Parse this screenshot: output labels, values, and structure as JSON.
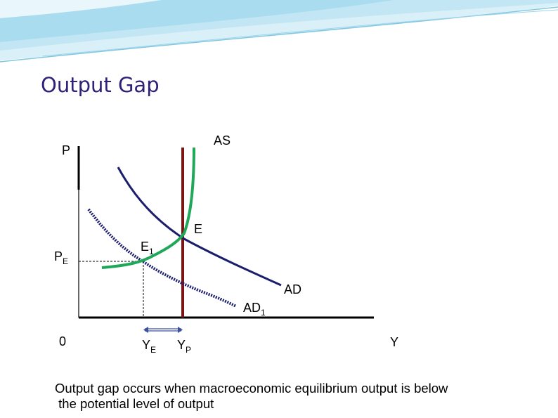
{
  "slide": {
    "title": "Output Gap",
    "caption_line1": "Output gap occurs when macroeconomic equilibrium output is below",
    "caption_line2": " the potential level of output"
  },
  "diagram": {
    "y_axis_label": "P",
    "x_axis_label": "Y",
    "origin_label": "0",
    "pe_label_main": "P",
    "pe_label_sub": "E",
    "ye_label_main": "Y",
    "ye_label_sub": "E",
    "yp_label_main": "Y",
    "yp_label_sub": "P",
    "as_label": "AS",
    "ad_label": "AD",
    "ad1_label_main": "AD",
    "ad1_label_sub": "1",
    "e_label": "E",
    "e1_label_main": "E",
    "e1_label_sub": "1",
    "colors": {
      "as_curve": "#1fa85a",
      "ad_curve": "#1b1f6b",
      "potential_line": "#7a1515",
      "axis": "#000000",
      "title": "#2e2178",
      "gap_arrow": "#3b4fa0"
    }
  }
}
